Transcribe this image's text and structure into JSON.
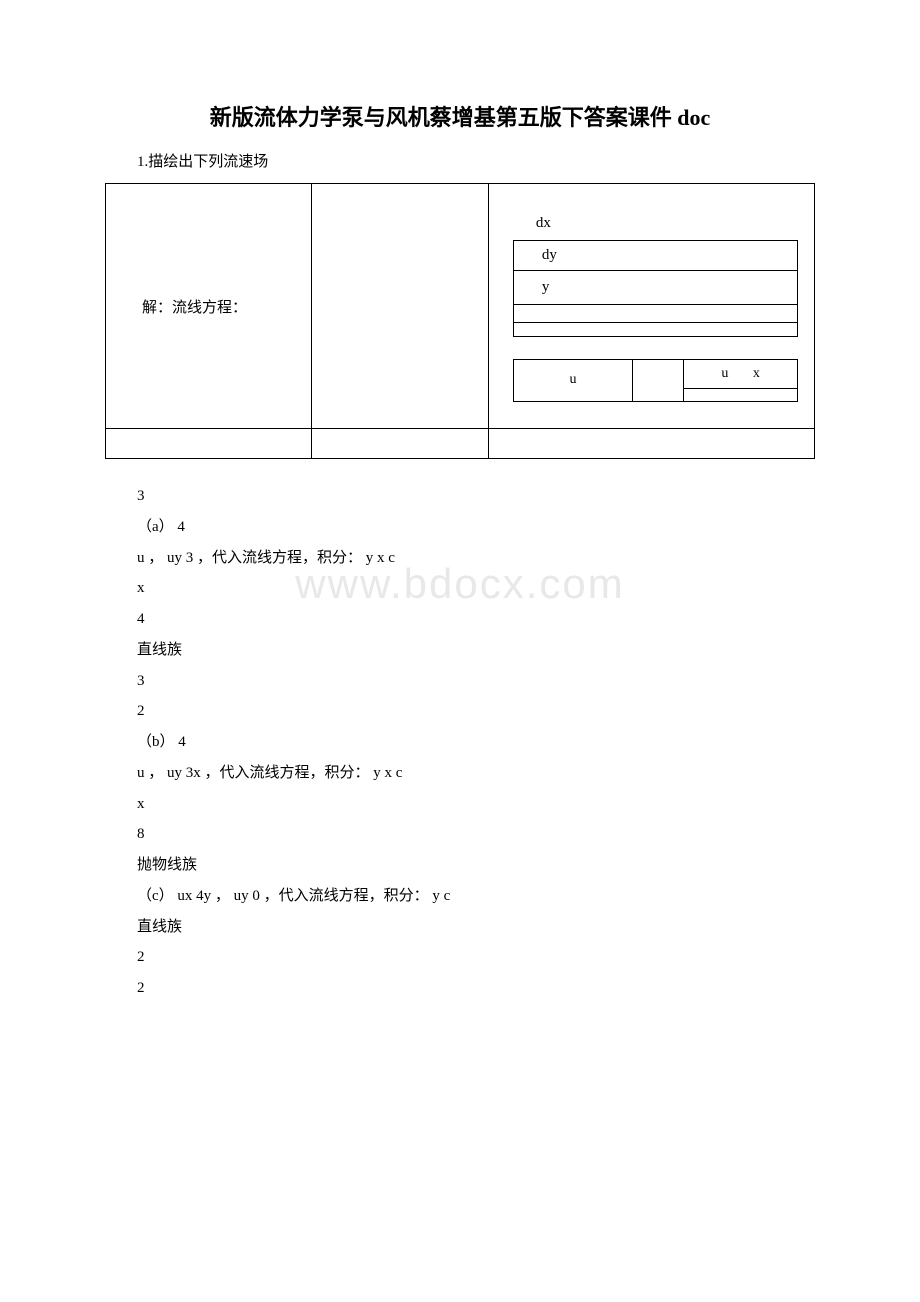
{
  "title": "新版流体力学泵与风机蔡增基第五版下答案课件 doc",
  "subtitle": "1.描绘出下列流速场",
  "table": {
    "col1_label": "解：流线方程：",
    "dx": "dx",
    "dy": "dy",
    "y": "y",
    "u1": "u",
    "u2": "u",
    "x": "x"
  },
  "lines": [
    "3",
    "（a） 4",
    "u ， uy 3 ，代入流线方程，积分： y x c",
    "x",
    "4",
    "直线族",
    "3",
    "2",
    "（b） 4",
    "u ， uy 3x ，代入流线方程，积分： y x c",
    "x",
    "8",
    "抛物线族",
    "（c） ux 4y ，  uy 0 ，代入流线方程，积分： y c",
    "直线族",
    "2",
    "2"
  ],
  "watermark": "www.bdocx.com",
  "colors": {
    "background": "#ffffff",
    "text": "#000000",
    "border": "#000000",
    "watermark": "#e8e8e8"
  }
}
